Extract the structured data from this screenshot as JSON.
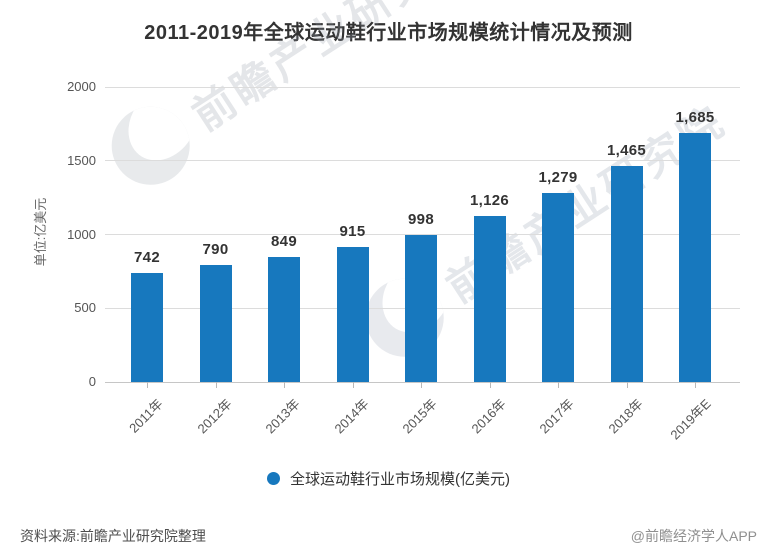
{
  "title": "2011-2019年全球运动鞋行业市场规模统计情况及预测",
  "y_axis": {
    "unit_label": "单位:亿美元",
    "tick_labels": [
      "0",
      "500",
      "1000",
      "1500",
      "2000"
    ]
  },
  "chart_data": {
    "type": "bar",
    "title": "2011-2019年全球运动鞋行业市场规模统计情况及预测",
    "categories": [
      "2011年",
      "2012年",
      "2013年",
      "2014年",
      "2015年",
      "2016年",
      "2017年",
      "2018年",
      "2019年E"
    ],
    "values": [
      742,
      790,
      849,
      915,
      998,
      1126,
      1279,
      1465,
      1685
    ],
    "value_labels": [
      "742",
      "790",
      "849",
      "915",
      "998",
      "1,126",
      "1,279",
      "1,465",
      "1,685"
    ],
    "xlabel": "",
    "ylabel": "单位:亿美元",
    "ylim": [
      0,
      2000
    ],
    "y_ticks": [
      0,
      500,
      1000,
      1500,
      2000
    ],
    "grid": true,
    "legend_position": "bottom",
    "legend": "全球运动鞋行业市场规模(亿美元)"
  },
  "legend": {
    "label": "全球运动鞋行业市场规模(亿美元)",
    "marker_color": "#1778be"
  },
  "colors": {
    "bar": "#1778be",
    "grid": "#dcdcdc",
    "axis": "#c6c6c6"
  },
  "watermark": {
    "brand_text": "前瞻产业研究院"
  },
  "footer": {
    "source": "资料来源:前瞻产业研究院整理",
    "credit": "@前瞻经济学人APP"
  }
}
